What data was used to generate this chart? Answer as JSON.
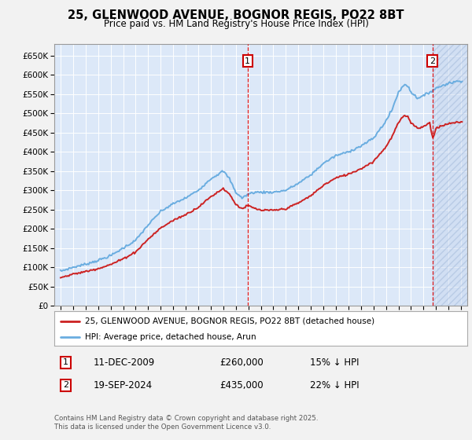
{
  "title": "25, GLENWOOD AVENUE, BOGNOR REGIS, PO22 8BT",
  "subtitle": "Price paid vs. HM Land Registry's House Price Index (HPI)",
  "background_color": "#f2f2f2",
  "plot_bg_color": "#dce8f8",
  "hpi_color": "#6aade0",
  "price_color": "#cc2222",
  "ylim": [
    0,
    680000
  ],
  "yticks": [
    0,
    50000,
    100000,
    150000,
    200000,
    250000,
    300000,
    350000,
    400000,
    450000,
    500000,
    550000,
    600000,
    650000
  ],
  "sale1_year": 2009.95,
  "sale1_price": 260000,
  "sale1_label": "1",
  "sale2_year": 2024.72,
  "sale2_price": 435000,
  "sale2_label": "2",
  "legend_line1": "25, GLENWOOD AVENUE, BOGNOR REGIS, PO22 8BT (detached house)",
  "legend_line2": "HPI: Average price, detached house, Arun",
  "note1_label": "1",
  "note1_date": "11-DEC-2009",
  "note1_price": "£260,000",
  "note1_hpi": "15% ↓ HPI",
  "note2_label": "2",
  "note2_date": "19-SEP-2024",
  "note2_price": "£435,000",
  "note2_hpi": "22% ↓ HPI",
  "footer": "Contains HM Land Registry data © Crown copyright and database right 2025.\nThis data is licensed under the Open Government Licence v3.0.",
  "xmin": 1994.5,
  "xmax": 2027.5
}
